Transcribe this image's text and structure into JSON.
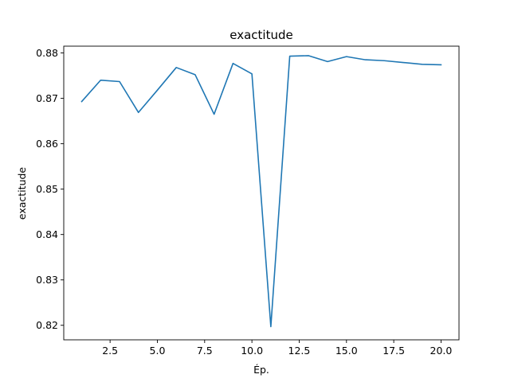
{
  "chart_data": {
    "type": "line",
    "title": "exactitude",
    "xlabel": "Ép.",
    "ylabel": "exactitude",
    "xlim": [
      0.05,
      20.95
    ],
    "ylim": [
      0.8168,
      0.8815
    ],
    "xticks": [
      2.5,
      5.0,
      7.5,
      10.0,
      12.5,
      15.0,
      17.5,
      20.0
    ],
    "xtick_labels": [
      "2.5",
      "5.0",
      "7.5",
      "10.0",
      "12.5",
      "15.0",
      "17.5",
      "20.0"
    ],
    "yticks": [
      0.82,
      0.83,
      0.84,
      0.85,
      0.86,
      0.87,
      0.88
    ],
    "ytick_labels": [
      "0.82",
      "0.83",
      "0.84",
      "0.85",
      "0.86",
      "0.87",
      "0.88"
    ],
    "grid": false,
    "colors": {
      "line": "#1f77b4",
      "axes": "#000000",
      "background": "#ffffff"
    },
    "series": [
      {
        "x": [
          1,
          2,
          3,
          4,
          5,
          6,
          7,
          8,
          9,
          10,
          11,
          12,
          13,
          14,
          15,
          16,
          17,
          18,
          19,
          20
        ],
        "values": [
          0.8693,
          0.874,
          0.8737,
          0.8669,
          0.8718,
          0.8768,
          0.8752,
          0.8665,
          0.8777,
          0.8754,
          0.8197,
          0.8793,
          0.8794,
          0.8781,
          0.8792,
          0.8785,
          0.8783,
          0.8779,
          0.8775,
          0.8774
        ]
      }
    ]
  }
}
